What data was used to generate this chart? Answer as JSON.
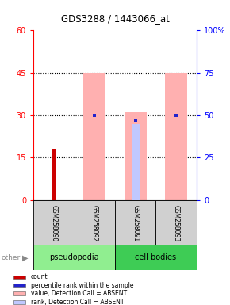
{
  "title": "GDS3288 / 1443066_at",
  "samples": [
    "GSM258090",
    "GSM258092",
    "GSM258091",
    "GSM258093"
  ],
  "count_values": [
    18,
    0,
    0,
    0
  ],
  "rank_values": [
    0.5,
    30,
    28,
    30
  ],
  "value_absent": [
    0,
    45,
    31,
    45
  ],
  "rank_absent": [
    0,
    0,
    27,
    0
  ],
  "ylim": [
    0,
    60
  ],
  "yticks_left": [
    0,
    15,
    30,
    45,
    60
  ],
  "ytick_labels_left": [
    "0",
    "15",
    "30",
    "45",
    "60"
  ],
  "ytick_labels_right": [
    "0",
    "25",
    "50",
    "75",
    "100%"
  ],
  "group_info": [
    {
      "label": "pseudopodia",
      "start": 0,
      "end": 2,
      "color": "#90EE90"
    },
    {
      "label": "cell bodies",
      "start": 2,
      "end": 4,
      "color": "#3ECC55"
    }
  ],
  "count_color": "#CC0000",
  "rank_color": "#2222CC",
  "value_absent_color": "#FFB0B0",
  "rank_absent_color": "#C0C8FF",
  "legend_items": [
    "count",
    "percentile rank within the sample",
    "value, Detection Call = ABSENT",
    "rank, Detection Call = ABSENT"
  ],
  "legend_colors": [
    "#CC0000",
    "#2222CC",
    "#FFB0B0",
    "#C0C8FF"
  ]
}
